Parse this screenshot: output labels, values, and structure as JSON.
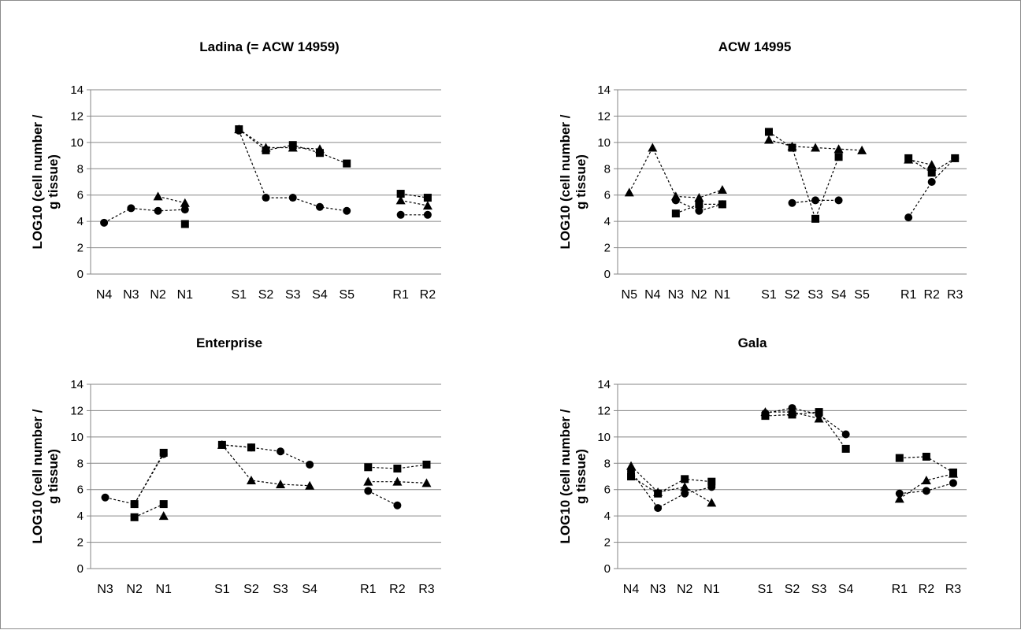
{
  "chart_data": [
    {
      "type": "scatter",
      "title": "Ladina (= ACW 14959)",
      "ylabel": "LOG10 (cell number / g tissue)",
      "ylim": [
        0,
        14
      ],
      "yticks": [
        0,
        2,
        4,
        6,
        8,
        10,
        12,
        14
      ],
      "grid": true,
      "categories": [
        "N4",
        "N3",
        "N2",
        "N1",
        "",
        "S1",
        "S2",
        "S3",
        "S4",
        "S5",
        "",
        "R1",
        "R2"
      ],
      "series": [
        {
          "marker": "circle",
          "segments": [
            [
              [
                "N4",
                3.9
              ],
              [
                "N3",
                5.0
              ],
              [
                "N2",
                4.8
              ],
              [
                "N1",
                4.9
              ]
            ],
            [
              [
                "S1",
                10.9
              ],
              [
                "S2",
                5.8
              ],
              [
                "S3",
                5.8
              ],
              [
                "S4",
                5.1
              ],
              [
                "S5",
                4.8
              ]
            ],
            [
              [
                "R1",
                4.5
              ],
              [
                "R2",
                4.5
              ]
            ]
          ]
        },
        {
          "marker": "square",
          "segments": [
            [
              [
                "N1",
                3.8
              ]
            ],
            [
              [
                "S1",
                11.0
              ],
              [
                "S2",
                9.4
              ],
              [
                "S3",
                9.8
              ],
              [
                "S4",
                9.2
              ],
              [
                "S5",
                8.4
              ]
            ],
            [
              [
                "R1",
                6.1
              ],
              [
                "R2",
                5.8
              ]
            ]
          ]
        },
        {
          "marker": "triangle",
          "segments": [
            [
              [
                "N2",
                5.9
              ],
              [
                "N1",
                5.4
              ]
            ],
            [
              [
                "S1",
                11.0
              ],
              [
                "S2",
                9.6
              ],
              [
                "S3",
                9.6
              ],
              [
                "S4",
                9.5
              ]
            ],
            [
              [
                "R1",
                5.6
              ],
              [
                "R2",
                5.2
              ]
            ]
          ]
        }
      ]
    },
    {
      "type": "scatter",
      "title": "ACW 14995",
      "ylabel": "LOG10 (cell number / g tissue)",
      "ylim": [
        0,
        14
      ],
      "yticks": [
        0,
        2,
        4,
        6,
        8,
        10,
        12,
        14
      ],
      "grid": true,
      "categories": [
        "N5",
        "N4",
        "N3",
        "N2",
        "N1",
        "",
        "S1",
        "S2",
        "S3",
        "S4",
        "S5",
        "",
        "R1",
        "R2",
        "R3"
      ],
      "series": [
        {
          "marker": "circle",
          "segments": [
            [
              [
                "N3",
                5.6
              ],
              [
                "N2",
                4.8
              ],
              [
                "N1",
                5.3
              ]
            ],
            [
              [
                "S2",
                5.4
              ],
              [
                "S3",
                5.6
              ],
              [
                "S4",
                5.6
              ]
            ],
            [
              [
                "R1",
                4.3
              ],
              [
                "R2",
                7.0
              ],
              [
                "R3",
                8.8
              ]
            ]
          ]
        },
        {
          "marker": "square",
          "segments": [
            [
              [
                "N3",
                4.6
              ],
              [
                "N2",
                5.3
              ],
              [
                "N1",
                5.3
              ]
            ],
            [
              [
                "S1",
                10.8
              ],
              [
                "S2",
                9.6
              ],
              [
                "S3",
                4.2
              ],
              [
                "S4",
                8.9
              ]
            ],
            [
              [
                "R1",
                8.8
              ],
              [
                "R2",
                7.7
              ],
              [
                "R3",
                8.8
              ]
            ]
          ]
        },
        {
          "marker": "triangle",
          "segments": [
            [
              [
                "N5",
                6.2
              ],
              [
                "N4",
                9.6
              ],
              [
                "N3",
                5.9
              ],
              [
                "N2",
                5.8
              ],
              [
                "N1",
                6.4
              ]
            ],
            [
              [
                "S1",
                10.2
              ],
              [
                "S2",
                9.7
              ],
              [
                "S3",
                9.6
              ],
              [
                "S4",
                9.5
              ],
              [
                "S5",
                9.4
              ]
            ],
            [
              [
                "R1",
                8.7
              ],
              [
                "R2",
                8.3
              ]
            ]
          ]
        }
      ]
    },
    {
      "type": "scatter",
      "title": "Enterprise",
      "ylabel": "LOG10 (cell number / g tissue)",
      "ylim": [
        0,
        14
      ],
      "yticks": [
        0,
        2,
        4,
        6,
        8,
        10,
        12,
        14
      ],
      "grid": true,
      "categories": [
        "N3",
        "N2",
        "N1",
        "",
        "S1",
        "S2",
        "S3",
        "S4",
        "",
        "R1",
        "R2",
        "R3"
      ],
      "series": [
        {
          "marker": "circle",
          "segments": [
            [
              [
                "N3",
                5.4
              ],
              [
                "N2",
                4.9
              ],
              [
                "N1",
                8.7
              ]
            ],
            [
              [
                "S1",
                9.4
              ],
              [
                "S2",
                9.2
              ],
              [
                "S3",
                8.9
              ],
              [
                "S4",
                7.9
              ]
            ],
            [
              [
                "R1",
                5.9
              ],
              [
                "R2",
                4.8
              ]
            ]
          ]
        },
        {
          "marker": "square",
          "segments": [
            [
              [
                "N2",
                4.9
              ],
              [
                "N1",
                8.8
              ]
            ],
            [
              [
                "N2",
                3.9
              ],
              [
                "N1",
                4.9
              ]
            ],
            [
              [
                "S1",
                9.4
              ],
              [
                "S2",
                9.2
              ]
            ],
            [
              [
                "R1",
                7.7
              ],
              [
                "R2",
                7.6
              ],
              [
                "R3",
                7.9
              ]
            ]
          ]
        },
        {
          "marker": "triangle",
          "segments": [
            [
              [
                "N1",
                4.0
              ]
            ],
            [
              [
                "S1",
                9.4
              ],
              [
                "S2",
                6.7
              ],
              [
                "S3",
                6.4
              ],
              [
                "S4",
                6.3
              ]
            ],
            [
              [
                "R1",
                6.6
              ],
              [
                "R2",
                6.6
              ],
              [
                "R3",
                6.5
              ]
            ]
          ]
        }
      ]
    },
    {
      "type": "scatter",
      "title": "Gala",
      "ylabel": "LOG10 (cell number / g tissue)",
      "ylim": [
        0,
        14
      ],
      "yticks": [
        0,
        2,
        4,
        6,
        8,
        10,
        12,
        14
      ],
      "grid": true,
      "categories": [
        "N4",
        "N3",
        "N2",
        "N1",
        "",
        "S1",
        "S2",
        "S3",
        "S4",
        "",
        "R1",
        "R2",
        "R3"
      ],
      "series": [
        {
          "marker": "circle",
          "segments": [
            [
              [
                "N4",
                7.4
              ],
              [
                "N3",
                4.6
              ],
              [
                "N2",
                5.7
              ],
              [
                "N1",
                6.2
              ]
            ],
            [
              [
                "S1",
                11.8
              ],
              [
                "S2",
                12.2
              ],
              [
                "S3",
                11.7
              ],
              [
                "S4",
                10.2
              ]
            ],
            [
              [
                "R1",
                5.7
              ],
              [
                "R2",
                5.9
              ],
              [
                "R3",
                6.5
              ]
            ]
          ]
        },
        {
          "marker": "square",
          "segments": [
            [
              [
                "N4",
                7.0
              ],
              [
                "N3",
                5.7
              ],
              [
                "N2",
                6.8
              ],
              [
                "N1",
                6.6
              ]
            ],
            [
              [
                "S1",
                11.6
              ],
              [
                "S2",
                11.7
              ],
              [
                "S3",
                11.9
              ],
              [
                "S4",
                9.1
              ]
            ],
            [
              [
                "R1",
                8.4
              ],
              [
                "R2",
                8.5
              ],
              [
                "R3",
                7.3
              ]
            ]
          ]
        },
        {
          "marker": "triangle",
          "segments": [
            [
              [
                "N4",
                7.8
              ],
              [
                "N3",
                5.8
              ],
              [
                "N2",
                6.2
              ],
              [
                "N1",
                5.0
              ]
            ],
            [
              [
                "S1",
                11.9
              ],
              [
                "S2",
                11.9
              ],
              [
                "S3",
                11.4
              ]
            ],
            [
              [
                "R1",
                5.3
              ],
              [
                "R2",
                6.7
              ],
              [
                "R3",
                7.2
              ]
            ]
          ]
        }
      ]
    }
  ]
}
